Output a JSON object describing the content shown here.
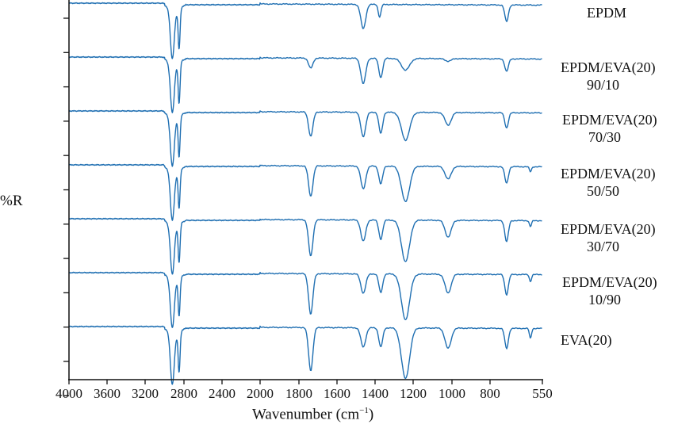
{
  "chart_data": {
    "type": "line",
    "title": "",
    "xlabel": "Wavenumber (cm⁻¹)",
    "xlabel_base": "Wavenumber (cm",
    "xlabel_sup": "−1",
    "xlabel_close": ")",
    "ylabel": "%R",
    "x_axis_reversed": true,
    "xlim": [
      4000,
      550
    ],
    "x_ticks": [
      4000,
      3600,
      3200,
      2800,
      2400,
      2000,
      1800,
      1600,
      1400,
      1200,
      1000,
      800,
      550
    ],
    "x_tick_labels": [
      "4000",
      "3600",
      "3200",
      "2800",
      "2400",
      "2000",
      "1800",
      "1600",
      "1400",
      "1200",
      "1000",
      "800",
      "550"
    ],
    "y_tick_labels_shown": false,
    "y_ticks_count": 12,
    "grid": false,
    "legend_position": "right, inline per trace",
    "series_color": "#1f6fb2",
    "series": [
      {
        "name": "EPDM",
        "label_line1": "EPDM",
        "label_line2": "",
        "offset_index": 0,
        "peaks": [
          {
            "wn": 2920,
            "depth": 0.95
          },
          {
            "wn": 2850,
            "depth": 0.8
          },
          {
            "wn": 1462,
            "depth": 0.48
          },
          {
            "wn": 1376,
            "depth": 0.25
          },
          {
            "wn": 721,
            "depth": 0.33
          }
        ]
      },
      {
        "name": "EPDM/EVA(20) 90/10",
        "label_line1": "EPDM/EVA(20)",
        "label_line2": "90/10",
        "offset_index": 1,
        "peaks": [
          {
            "wn": 2920,
            "depth": 0.95
          },
          {
            "wn": 2850,
            "depth": 0.8
          },
          {
            "wn": 1738,
            "depth": 0.2
          },
          {
            "wn": 1462,
            "depth": 0.5
          },
          {
            "wn": 1370,
            "depth": 0.38
          },
          {
            "wn": 1240,
            "depth": 0.23
          },
          {
            "wn": 1020,
            "depth": 0.05
          },
          {
            "wn": 721,
            "depth": 0.25
          }
        ]
      },
      {
        "name": "EPDM/EVA(20) 70/30",
        "label_line1": "EPDM/EVA(20)",
        "label_line2": "70/30",
        "offset_index": 2,
        "peaks": [
          {
            "wn": 2920,
            "depth": 0.95
          },
          {
            "wn": 2850,
            "depth": 0.8
          },
          {
            "wn": 1738,
            "depth": 0.48
          },
          {
            "wn": 1462,
            "depth": 0.48
          },
          {
            "wn": 1370,
            "depth": 0.42
          },
          {
            "wn": 1240,
            "depth": 0.55
          },
          {
            "wn": 1020,
            "depth": 0.25
          },
          {
            "wn": 721,
            "depth": 0.3
          }
        ]
      },
      {
        "name": "EPDM/EVA(20) 50/50",
        "label_line1": "EPDM/EVA(20)",
        "label_line2": "50/50",
        "offset_index": 3,
        "peaks": [
          {
            "wn": 2920,
            "depth": 0.95
          },
          {
            "wn": 2850,
            "depth": 0.75
          },
          {
            "wn": 1738,
            "depth": 0.6
          },
          {
            "wn": 1462,
            "depth": 0.45
          },
          {
            "wn": 1370,
            "depth": 0.35
          },
          {
            "wn": 1240,
            "depth": 0.7
          },
          {
            "wn": 1020,
            "depth": 0.25
          },
          {
            "wn": 721,
            "depth": 0.33
          },
          {
            "wn": 607,
            "depth": 0.1
          }
        ]
      },
      {
        "name": "EPDM/EVA(20) 30/70",
        "label_line1": "EPDM/EVA(20)",
        "label_line2": "30/70",
        "offset_index": 4,
        "peaks": [
          {
            "wn": 2920,
            "depth": 0.95
          },
          {
            "wn": 2850,
            "depth": 0.75
          },
          {
            "wn": 1738,
            "depth": 0.72
          },
          {
            "wn": 1462,
            "depth": 0.42
          },
          {
            "wn": 1370,
            "depth": 0.38
          },
          {
            "wn": 1240,
            "depth": 0.82
          },
          {
            "wn": 1020,
            "depth": 0.33
          },
          {
            "wn": 721,
            "depth": 0.42
          },
          {
            "wn": 607,
            "depth": 0.12
          }
        ]
      },
      {
        "name": "EPDM/EVA(20) 10/90",
        "label_line1": "EPDM/EVA(20)",
        "label_line2": "10/90",
        "offset_index": 5,
        "peaks": [
          {
            "wn": 2920,
            "depth": 0.95
          },
          {
            "wn": 2850,
            "depth": 0.75
          },
          {
            "wn": 1738,
            "depth": 0.8
          },
          {
            "wn": 1462,
            "depth": 0.38
          },
          {
            "wn": 1370,
            "depth": 0.37
          },
          {
            "wn": 1240,
            "depth": 0.9
          },
          {
            "wn": 1020,
            "depth": 0.37
          },
          {
            "wn": 721,
            "depth": 0.4
          },
          {
            "wn": 607,
            "depth": 0.14
          }
        ]
      },
      {
        "name": "EVA(20)",
        "label_line1": "EVA(20)",
        "label_line2": "",
        "offset_index": 6,
        "peaks": [
          {
            "wn": 2920,
            "depth": 1.0
          },
          {
            "wn": 2850,
            "depth": 0.8
          },
          {
            "wn": 1738,
            "depth": 0.85
          },
          {
            "wn": 1462,
            "depth": 0.38
          },
          {
            "wn": 1370,
            "depth": 0.38
          },
          {
            "wn": 1240,
            "depth": 1.0
          },
          {
            "wn": 1020,
            "depth": 0.4
          },
          {
            "wn": 721,
            "depth": 0.4
          },
          {
            "wn": 607,
            "depth": 0.2
          }
        ]
      }
    ]
  }
}
